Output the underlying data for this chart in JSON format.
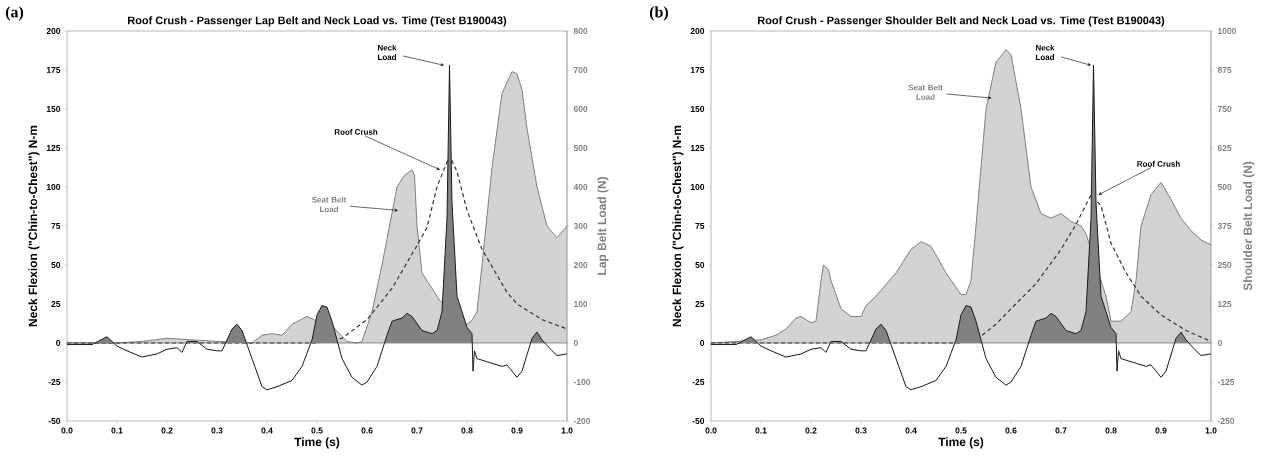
{
  "chart_data": [
    {
      "type": "line",
      "title": "Roof Crush - Passenger Lap Belt and Neck Load vs. Time (Test B190043)",
      "xlabel": "Time (s)",
      "ylabel": "Neck Flexion (\"Chin-to-Chest\") N-m",
      "y2label": "Lap Belt Load (N)",
      "xlim": [
        0,
        1
      ],
      "xticks": [
        {
          "value": 0,
          "label": "0.0"
        },
        {
          "value": 0.1,
          "label": "0.1"
        },
        {
          "value": 0.2,
          "label": "0.2"
        },
        {
          "value": 0.3,
          "label": "0.3"
        },
        {
          "value": 0.4,
          "label": "0.4"
        },
        {
          "value": 0.5,
          "label": "0.5"
        },
        {
          "value": 0.6,
          "label": "0.6"
        },
        {
          "value": 0.7,
          "label": "0.7"
        },
        {
          "value": 0.8,
          "label": "0.8"
        },
        {
          "value": 0.9,
          "label": "0.9"
        },
        {
          "value": 1,
          "label": "1.0"
        }
      ],
      "ylim": [
        -50,
        200
      ],
      "yticks": [
        -50,
        -25,
        0,
        25,
        50,
        75,
        100,
        125,
        150,
        175,
        200
      ],
      "y2lim": [
        -200,
        800
      ],
      "y2ticks": [
        -200,
        -100,
        0,
        100,
        200,
        300,
        400,
        500,
        600,
        700,
        800
      ],
      "ref_lines": [
        {
          "axis": "y",
          "value": 0
        }
      ],
      "annotations": [
        "(a)",
        {
          "text": "Neck Load",
          "x": 0.754,
          "y": 178
        },
        {
          "text": "Roof Crush",
          "x": 0.746,
          "y": 111
        },
        {
          "text": "Seat Belt Load",
          "x": 0.662,
          "y": 85
        }
      ],
      "series": [
        {
          "type": "area",
          "axis": "y2",
          "color": "#7f7f7f",
          "x": [
            0,
            0.1,
            0.15,
            0.2,
            0.25,
            0.3,
            0.37,
            0.39,
            0.41,
            0.43,
            0.45,
            0.48,
            0.5,
            0.52,
            0.54,
            0.56,
            0.58,
            0.59,
            0.61,
            0.63,
            0.645,
            0.66,
            0.675,
            0.69,
            0.695,
            0.7,
            0.71,
            0.73,
            0.746,
            0.78,
            0.8,
            0.81,
            0.82,
            0.83,
            0.85,
            0.87,
            0.89,
            0.9,
            0.91,
            0.92,
            0.94,
            0.96,
            0.98,
            1.0
          ],
          "values": [
            0,
            0,
            4,
            12,
            8,
            4,
            0,
            20,
            24,
            20,
            48,
            68,
            56,
            60,
            30,
            4,
            0,
            4,
            80,
            200,
            300,
            400,
            430,
            444,
            430,
            300,
            180,
            140,
            108,
            70,
            48,
            58,
            80,
            200,
            450,
            640,
            696,
            690,
            650,
            550,
            400,
            300,
            270,
            300
          ]
        },
        {
          "axis": "y2",
          "color": "#333333",
          "line_style": "dashed",
          "x": [
            0,
            0.5,
            0.55,
            0.6,
            0.65,
            0.7,
            0.72,
            0.74,
            0.765,
            0.78,
            0.8,
            0.83,
            0.84,
            0.88,
            0.9,
            0.95,
            1.0
          ],
          "values": [
            0,
            0,
            12,
            60,
            140,
            250,
            296,
            400,
            480,
            440,
            340,
            240,
            218,
            130,
            100,
            60,
            36
          ]
        },
        {
          "type": "area",
          "color": "#1a1a1a",
          "x": [
            0,
            0.02,
            0.05,
            0.08,
            0.1,
            0.12,
            0.15,
            0.18,
            0.2,
            0.22,
            0.23,
            0.24,
            0.26,
            0.28,
            0.3,
            0.31,
            0.33,
            0.34,
            0.35,
            0.37,
            0.39,
            0.4,
            0.42,
            0.45,
            0.47,
            0.49,
            0.5,
            0.51,
            0.52,
            0.53,
            0.55,
            0.57,
            0.59,
            0.6,
            0.62,
            0.64,
            0.65,
            0.67,
            0.68,
            0.69,
            0.71,
            0.73,
            0.74,
            0.75,
            0.76,
            0.765,
            0.77,
            0.78,
            0.79,
            0.8,
            0.81,
            0.812,
            0.815,
            0.82,
            0.84,
            0.87,
            0.88,
            0.9,
            0.91,
            0.93,
            0.94,
            0.95,
            0.97,
            0.98,
            1.0
          ],
          "values": [
            -1,
            -1,
            -1,
            4,
            -2,
            -5,
            -9,
            -7,
            -4,
            -3,
            -6,
            1,
            1,
            -4,
            -5,
            -5,
            9,
            12,
            8,
            -10,
            -28,
            -30,
            -28,
            -24,
            -15,
            2,
            18,
            24,
            23,
            14,
            -10,
            -22,
            -27,
            -25,
            -15,
            5,
            14,
            16,
            19,
            17,
            8,
            6,
            8,
            20,
            80,
            178,
            90,
            30,
            20,
            10,
            6,
            -18,
            -5,
            -10,
            -12,
            -15,
            -14,
            -22,
            -18,
            3,
            7,
            2,
            -5,
            -8,
            -7
          ]
        }
      ]
    },
    {
      "type": "line",
      "title": "Roof Crush - Passenger Shoulder Belt and Neck Load vs. Time (Test B190043)",
      "xlabel": "Time (s)",
      "ylabel": "Neck Flexion (\"Chin-to-Chest\") N-m",
      "y2label": "Shoulder Belt Load (N)",
      "xlim": [
        0,
        1
      ],
      "xticks": [
        {
          "value": 0,
          "label": "0.0"
        },
        {
          "value": 0.1,
          "label": "0.1"
        },
        {
          "value": 0.2,
          "label": "0.2"
        },
        {
          "value": 0.3,
          "label": "0.3"
        },
        {
          "value": 0.4,
          "label": "0.4"
        },
        {
          "value": 0.5,
          "label": "0.5"
        },
        {
          "value": 0.6,
          "label": "0.6"
        },
        {
          "value": 0.7,
          "label": "0.7"
        },
        {
          "value": 0.8,
          "label": "0.8"
        },
        {
          "value": 0.9,
          "label": "0.9"
        },
        {
          "value": 1,
          "label": "1.0"
        }
      ],
      "ylim": [
        -50,
        200
      ],
      "yticks": [
        -50,
        -25,
        0,
        25,
        50,
        75,
        100,
        125,
        150,
        175,
        200
      ],
      "y2lim": [
        -250,
        1000
      ],
      "y2ticks": [
        -250,
        -125,
        0,
        125,
        250,
        375,
        500,
        625,
        750,
        875,
        1000
      ],
      "ref_lines": [
        {
          "axis": "y",
          "value": 0
        }
      ],
      "annotations": [
        "(b)",
        {
          "text": "Neck Load",
          "x": 0.76,
          "y": 178
        },
        {
          "text": "Roof Crush",
          "x": 0.775,
          "y": 95
        },
        {
          "text": "Seat Belt Load",
          "x": 0.561,
          "y": 157
        }
      ],
      "series": [
        {
          "type": "area",
          "axis": "y2",
          "color": "#7f7f7f",
          "x": [
            0,
            0.05,
            0.1,
            0.13,
            0.15,
            0.17,
            0.18,
            0.2,
            0.21,
            0.22,
            0.225,
            0.235,
            0.24,
            0.26,
            0.28,
            0.3,
            0.31,
            0.33,
            0.37,
            0.4,
            0.42,
            0.44,
            0.47,
            0.5,
            0.51,
            0.52,
            0.53,
            0.55,
            0.57,
            0.59,
            0.6,
            0.62,
            0.64,
            0.66,
            0.68,
            0.7,
            0.72,
            0.74,
            0.75,
            0.77,
            0.79,
            0.8,
            0.82,
            0.84,
            0.85,
            0.86,
            0.88,
            0.9,
            0.92,
            0.94,
            0.96,
            0.98,
            1.0
          ],
          "values": [
            0,
            5,
            10,
            25,
            45,
            80,
            85,
            65,
            70,
            200,
            250,
            235,
            200,
            110,
            85,
            85,
            120,
            150,
            225,
            300,
            325,
            310,
            225,
            155,
            155,
            200,
            375,
            750,
            900,
            940,
            925,
            750,
            500,
            415,
            400,
            415,
            390,
            375,
            350,
            250,
            150,
            70,
            70,
            100,
            200,
            375,
            475,
            515,
            460,
            400,
            360,
            330,
            315
          ]
        },
        {
          "axis": "y2",
          "color": "#333333",
          "line_style": "dashed",
          "x": [
            0,
            0.5,
            0.53,
            0.57,
            0.6,
            0.65,
            0.7,
            0.73,
            0.76,
            0.78,
            0.8,
            0.83,
            0.86,
            0.9,
            0.95,
            1.0
          ],
          "values": [
            0,
            0,
            10,
            60,
            110,
            190,
            300,
            380,
            475,
            440,
            320,
            225,
            150,
            90,
            40,
            5
          ]
        },
        {
          "type": "area",
          "color": "#1a1a1a",
          "x": [
            0,
            0.02,
            0.05,
            0.08,
            0.1,
            0.12,
            0.15,
            0.18,
            0.2,
            0.22,
            0.23,
            0.24,
            0.26,
            0.28,
            0.3,
            0.31,
            0.33,
            0.34,
            0.35,
            0.37,
            0.39,
            0.4,
            0.42,
            0.45,
            0.47,
            0.49,
            0.5,
            0.51,
            0.52,
            0.53,
            0.55,
            0.57,
            0.59,
            0.6,
            0.62,
            0.64,
            0.65,
            0.67,
            0.68,
            0.69,
            0.71,
            0.73,
            0.74,
            0.75,
            0.76,
            0.765,
            0.77,
            0.78,
            0.79,
            0.8,
            0.81,
            0.812,
            0.815,
            0.82,
            0.84,
            0.87,
            0.88,
            0.9,
            0.91,
            0.93,
            0.94,
            0.95,
            0.97,
            0.98,
            1.0
          ],
          "values": [
            -1,
            -1,
            -1,
            4,
            -2,
            -5,
            -9,
            -7,
            -4,
            -3,
            -6,
            1,
            1,
            -4,
            -5,
            -5,
            9,
            12,
            8,
            -10,
            -28,
            -30,
            -28,
            -24,
            -15,
            2,
            18,
            24,
            23,
            14,
            -10,
            -22,
            -27,
            -25,
            -15,
            5,
            14,
            16,
            19,
            17,
            8,
            6,
            8,
            20,
            80,
            178,
            90,
            30,
            20,
            10,
            6,
            -18,
            -5,
            -10,
            -12,
            -15,
            -14,
            -22,
            -18,
            3,
            7,
            2,
            -5,
            -8,
            -7
          ]
        }
      ]
    }
  ]
}
